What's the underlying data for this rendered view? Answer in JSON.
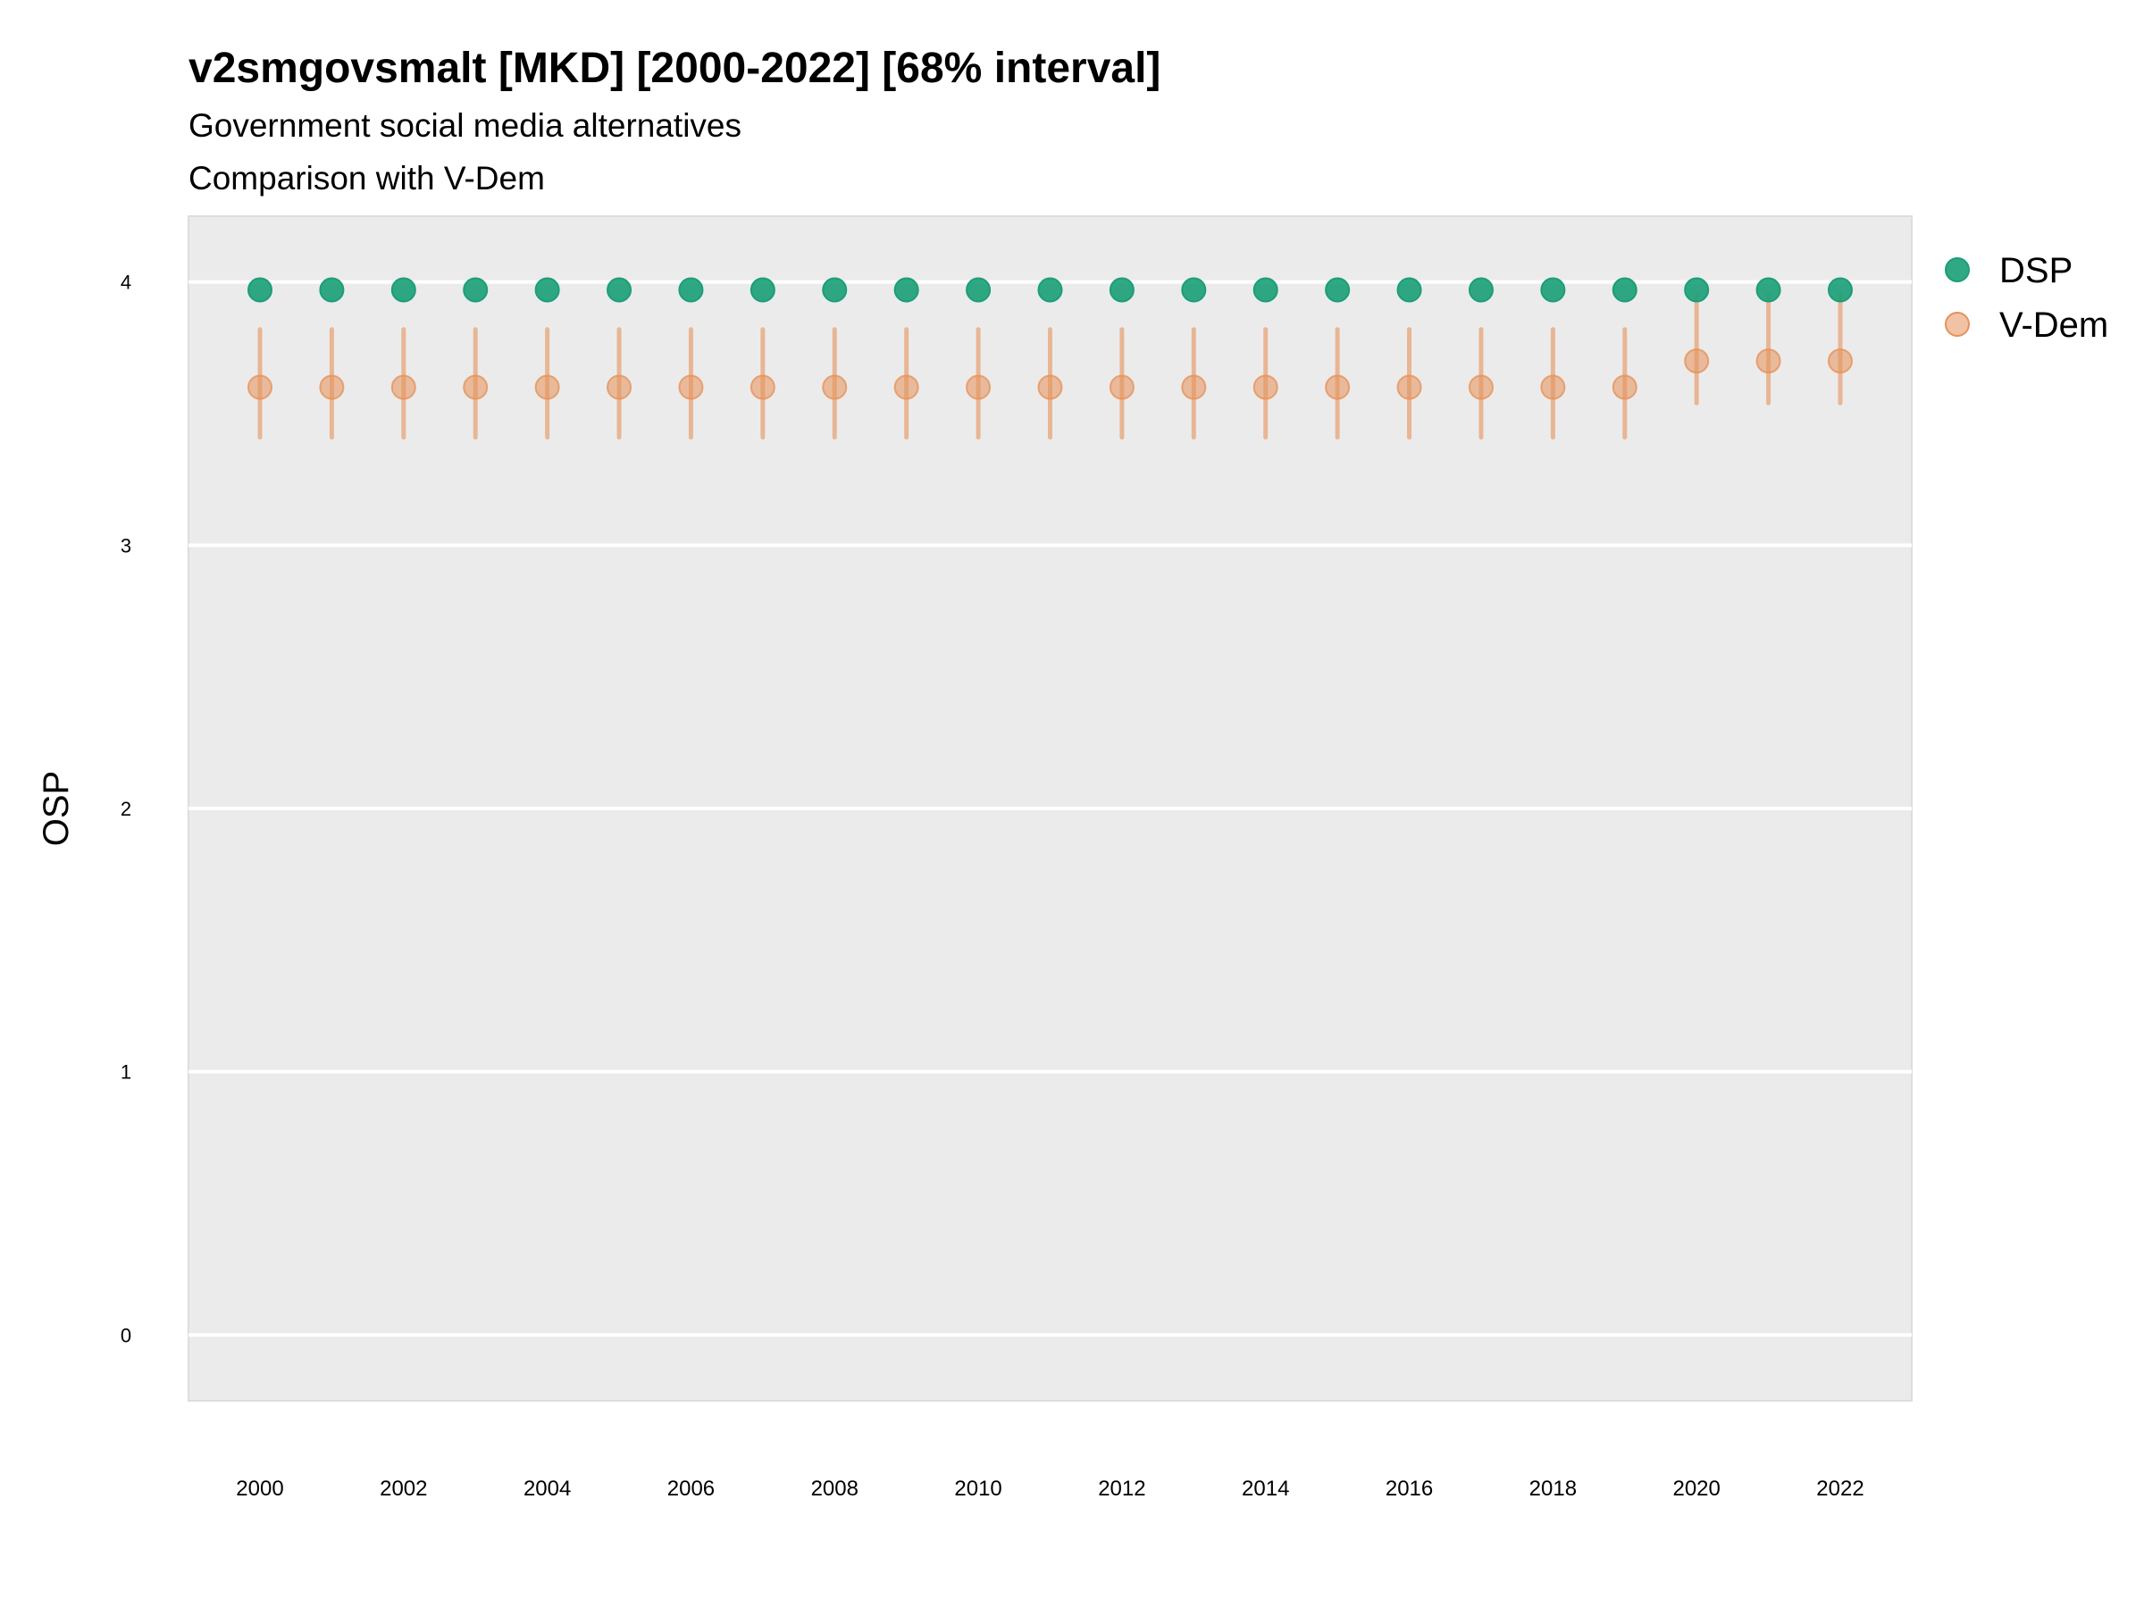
{
  "chart_data": {
    "type": "scatter",
    "title": "v2smgovsmalt [MKD] [2000-2022] [68% interval]",
    "subtitle": "Government social media alternatives",
    "caption": "Comparison with V-Dem",
    "xlabel": "",
    "ylabel": "OSP",
    "xlim": [
      1999,
      2023
    ],
    "ylim": [
      -0.25,
      4.25
    ],
    "x_ticks": [
      2000,
      2002,
      2004,
      2006,
      2008,
      2010,
      2012,
      2014,
      2016,
      2018,
      2020,
      2022
    ],
    "y_ticks": [
      0,
      1,
      2,
      3,
      4
    ],
    "grid": true,
    "legend_position": "right",
    "x": [
      2000,
      2001,
      2002,
      2003,
      2004,
      2005,
      2006,
      2007,
      2008,
      2009,
      2010,
      2011,
      2012,
      2013,
      2014,
      2015,
      2016,
      2017,
      2018,
      2019,
      2020,
      2021,
      2022
    ],
    "series": [
      {
        "name": "DSP",
        "color": "#1b9e77",
        "values": [
          3.97,
          3.97,
          3.97,
          3.97,
          3.97,
          3.97,
          3.97,
          3.97,
          3.97,
          3.97,
          3.97,
          3.97,
          3.97,
          3.97,
          3.97,
          3.97,
          3.97,
          3.97,
          3.97,
          3.97,
          3.97,
          3.97,
          3.97
        ]
      },
      {
        "name": "V-Dem",
        "color": "#e6925a",
        "values": [
          3.6,
          3.6,
          3.6,
          3.6,
          3.6,
          3.6,
          3.6,
          3.6,
          3.6,
          3.6,
          3.6,
          3.6,
          3.6,
          3.6,
          3.6,
          3.6,
          3.6,
          3.6,
          3.6,
          3.6,
          3.7,
          3.7,
          3.7
        ],
        "lower": [
          3.41,
          3.41,
          3.41,
          3.41,
          3.41,
          3.41,
          3.41,
          3.41,
          3.41,
          3.41,
          3.41,
          3.41,
          3.41,
          3.41,
          3.41,
          3.41,
          3.41,
          3.41,
          3.41,
          3.41,
          3.54,
          3.54,
          3.54
        ],
        "upper": [
          3.82,
          3.82,
          3.82,
          3.82,
          3.82,
          3.82,
          3.82,
          3.82,
          3.82,
          3.82,
          3.82,
          3.82,
          3.82,
          3.82,
          3.82,
          3.82,
          3.82,
          3.82,
          3.82,
          3.82,
          3.95,
          3.95,
          3.95
        ]
      }
    ]
  }
}
